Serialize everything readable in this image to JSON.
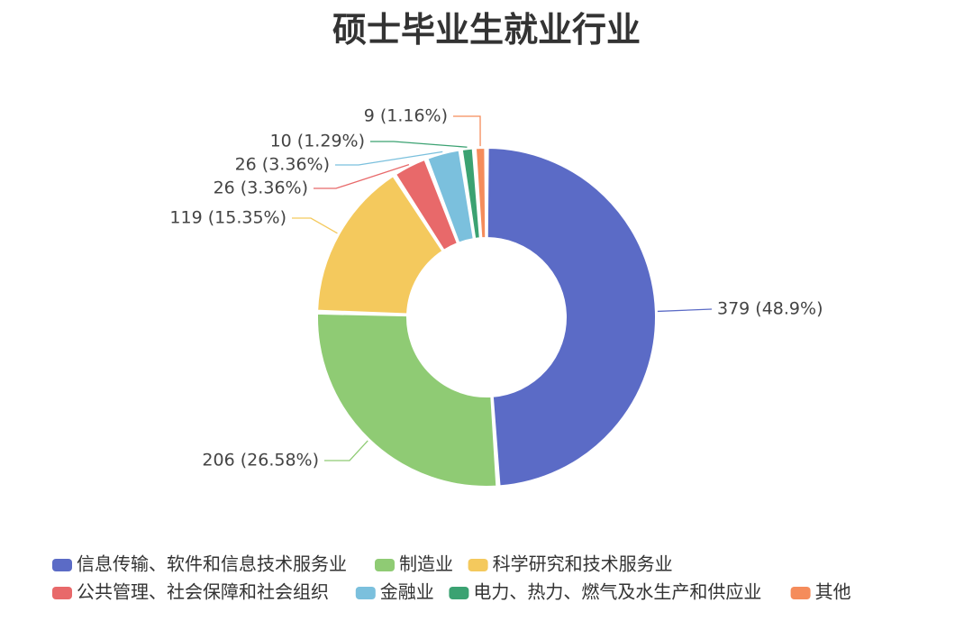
{
  "chart_data": {
    "type": "pie",
    "title": "硕士毕业生就业行业",
    "categories": [
      "信息传输、软件和信息技术服务业",
      "制造业",
      "科学研究和技术服务业",
      "公共管理、社会保障和社会组织",
      "金融业",
      "电力、热力、燃气及水生产和供应业",
      "其他"
    ],
    "values": [
      379,
      206,
      119,
      26,
      26,
      10,
      9
    ],
    "labels": [
      "379 (48.9%)",
      "206 (26.58%)",
      "119 (15.35%)",
      "26 (3.36%)",
      "26 (3.36%)",
      "10 (1.29%)",
      "9 (1.16%)"
    ],
    "colors": [
      "#5b6bc6",
      "#8fcb74",
      "#f4c95d",
      "#e8696a",
      "#7bc0dd",
      "#3ba272",
      "#f58c5b"
    ],
    "legend_position": "bottom"
  }
}
